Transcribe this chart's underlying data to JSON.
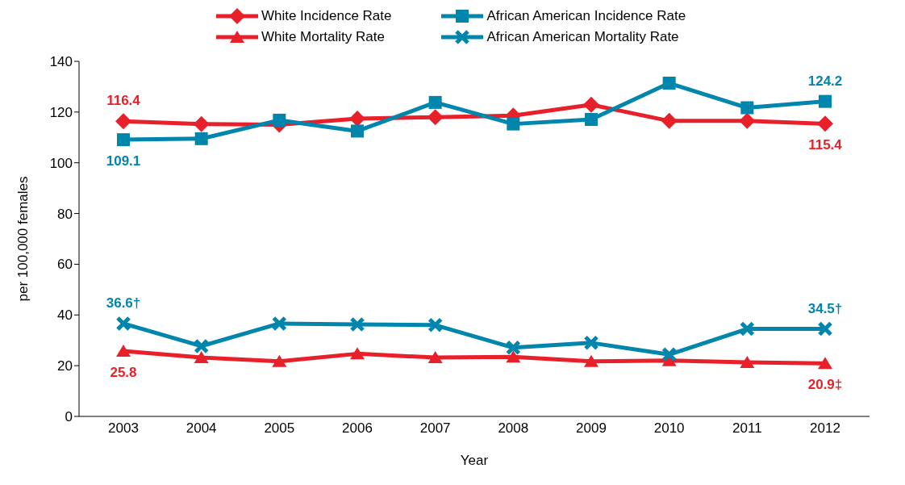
{
  "chart_data": {
    "type": "line",
    "xlabel": "Year",
    "ylabel": "per 100,000 females",
    "categories": [
      "2003",
      "2004",
      "2005",
      "2006",
      "2007",
      "2008",
      "2009",
      "2010",
      "2011",
      "2012"
    ],
    "series": [
      {
        "name": "White Incidence Rate",
        "color": "#e8202a",
        "marker": "diamond",
        "values": [
          116.4,
          115.3,
          115.0,
          117.4,
          118.0,
          118.6,
          122.9,
          116.5,
          116.5,
          115.4
        ],
        "value_labels": [
          "116.4",
          null,
          null,
          null,
          null,
          null,
          null,
          null,
          null,
          "115.4"
        ]
      },
      {
        "name": "African American Incidence Rate",
        "color": "#0085ad",
        "marker": "square",
        "values": [
          109.1,
          109.5,
          116.8,
          112.5,
          123.8,
          115.3,
          117.1,
          131.4,
          121.7,
          124.2
        ],
        "value_labels": [
          "109.1",
          null,
          null,
          null,
          null,
          null,
          null,
          null,
          null,
          "124.2"
        ]
      },
      {
        "name": "White Mortality Rate",
        "color": "#e8202a",
        "marker": "triangle",
        "values": [
          25.8,
          23.2,
          21.7,
          24.7,
          23.2,
          23.5,
          21.7,
          22.0,
          21.3,
          20.9
        ],
        "value_labels": [
          "25.8",
          null,
          null,
          null,
          null,
          null,
          null,
          null,
          null,
          "20.9‡"
        ]
      },
      {
        "name": "African American Mortality Rate",
        "color": "#0085ad",
        "marker": "cross",
        "values": [
          36.6,
          27.7,
          36.6,
          36.3,
          36.0,
          27.1,
          29.0,
          24.4,
          34.5,
          34.5
        ],
        "value_labels": [
          "36.6†",
          null,
          null,
          null,
          null,
          null,
          null,
          null,
          null,
          "34.5†"
        ]
      }
    ],
    "ylim": [
      0,
      140
    ],
    "yticks": [
      0,
      20,
      40,
      60,
      80,
      100,
      120,
      140
    ],
    "grid": false,
    "legend": "top",
    "line_style": "solid"
  }
}
